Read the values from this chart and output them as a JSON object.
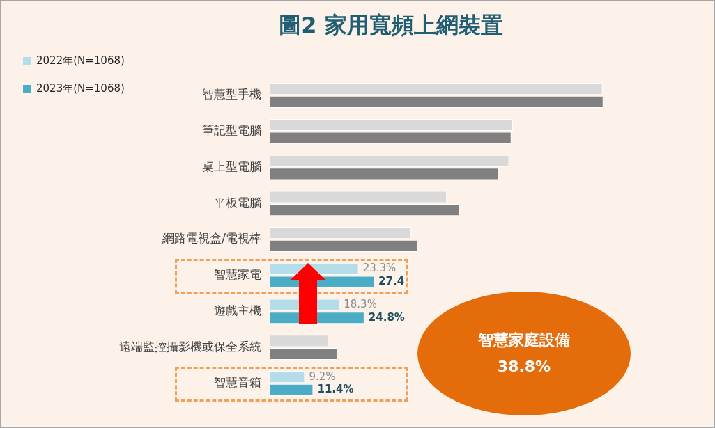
{
  "chart_data": {
    "type": "bar",
    "orientation": "horizontal",
    "title": "圖2 家用寬頻上網裝置",
    "categories": [
      "智慧型手機",
      "筆記型電腦",
      "桌上型電腦",
      "平板電腦",
      "網路電視盒/電視棒",
      "智慧家電",
      "遊戲主機",
      "遠端監控攝影機或保全系統",
      "智慧音箱"
    ],
    "series": [
      {
        "name": "2022年(N=1068)",
        "color": "#b4dde9",
        "colors": [
          "#d9d9d9",
          "#d9d9d9",
          "#d9d9d9",
          "#d9d9d9",
          "#d9d9d9",
          "#b4dde9",
          "#b4dde9",
          "#d9d9d9",
          "#b4dde9"
        ],
        "values": [
          87.2,
          63.7,
          62.7,
          46.4,
          37.0,
          23.3,
          18.3,
          15.4,
          9.2
        ],
        "value_labels": [
          null,
          null,
          null,
          null,
          null,
          "23.3%",
          "18.3%",
          null,
          "9.2%"
        ]
      },
      {
        "name": "2023年(N=1068)",
        "color": "#4bacc6",
        "colors": [
          "#808080",
          "#808080",
          "#808080",
          "#808080",
          "#808080",
          "#4bacc6",
          "#4bacc6",
          "#808080",
          "#4bacc6"
        ],
        "values": [
          87.4,
          63.3,
          59.9,
          49.8,
          38.8,
          27.4,
          24.8,
          17.7,
          11.4
        ],
        "value_labels": [
          null,
          null,
          null,
          null,
          null,
          "27.4",
          "24.8%",
          null,
          "11.4%"
        ]
      }
    ],
    "legend": "top left",
    "grid": false,
    "annotations": [
      "智慧家庭設備",
      "38.8%"
    ]
  }
}
